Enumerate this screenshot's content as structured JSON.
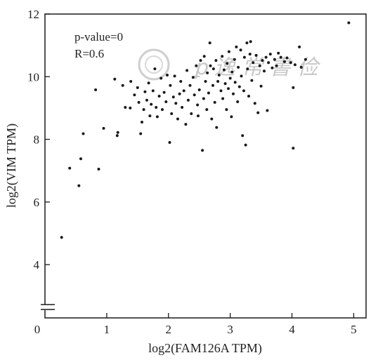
{
  "chart_data": {
    "type": "scatter",
    "xlabel": "log2(FAM126A TPM)",
    "ylabel": "log2(VIM TPM)",
    "xlim": [
      0,
      5.2
    ],
    "ylim": [
      2.3,
      12
    ],
    "x_ticks": [
      "0",
      "1",
      "2",
      "3",
      "4",
      "5"
    ],
    "y_ticks": [
      "4",
      "6",
      "8",
      "10",
      "12"
    ],
    "annotations": {
      "pvalue": "p-value=0",
      "r": "R=0.6"
    },
    "point_color": "#1a1a1a",
    "watermark_color": "#c8c8c8",
    "y_axis_break": true,
    "points": [
      [
        0.27,
        4.87
      ],
      [
        0.4,
        7.08
      ],
      [
        0.55,
        6.52
      ],
      [
        0.58,
        7.38
      ],
      [
        0.62,
        8.18
      ],
      [
        0.82,
        9.58
      ],
      [
        0.87,
        7.05
      ],
      [
        0.95,
        8.35
      ],
      [
        1.13,
        9.92
      ],
      [
        1.17,
        8.12
      ],
      [
        1.18,
        8.22
      ],
      [
        1.26,
        9.72
      ],
      [
        1.3,
        9.02
      ],
      [
        1.38,
        9.0
      ],
      [
        1.39,
        9.85
      ],
      [
        1.45,
        9.42
      ],
      [
        1.5,
        9.65
      ],
      [
        1.52,
        9.18
      ],
      [
        1.55,
        8.18
      ],
      [
        1.57,
        8.55
      ],
      [
        1.6,
        8.95
      ],
      [
        1.62,
        9.52
      ],
      [
        1.65,
        9.25
      ],
      [
        1.68,
        9.8
      ],
      [
        1.7,
        8.75
      ],
      [
        1.72,
        9.12
      ],
      [
        1.75,
        9.55
      ],
      [
        1.78,
        10.25
      ],
      [
        1.8,
        9.02
      ],
      [
        1.82,
        8.72
      ],
      [
        1.85,
        9.38
      ],
      [
        1.88,
        9.95
      ],
      [
        1.9,
        8.95
      ],
      [
        1.93,
        9.5
      ],
      [
        1.96,
        9.2
      ],
      [
        1.98,
        10.05
      ],
      [
        2.02,
        7.9
      ],
      [
        2.03,
        9.72
      ],
      [
        2.05,
        8.82
      ],
      [
        2.08,
        9.35
      ],
      [
        2.1,
        10.02
      ],
      [
        2.12,
        9.15
      ],
      [
        2.15,
        8.65
      ],
      [
        2.18,
        9.45
      ],
      [
        2.2,
        9.85
      ],
      [
        2.22,
        9.02
      ],
      [
        2.25,
        9.55
      ],
      [
        2.28,
        8.48
      ],
      [
        2.3,
        10.2
      ],
      [
        2.32,
        9.25
      ],
      [
        2.35,
        9.72
      ],
      [
        2.37,
        8.82
      ],
      [
        2.4,
        9.98
      ],
      [
        2.42,
        9.42
      ],
      [
        2.45,
        10.35
      ],
      [
        2.47,
        9.1
      ],
      [
        2.48,
        8.75
      ],
      [
        2.5,
        9.58
      ],
      [
        2.52,
        10.52
      ],
      [
        2.55,
        7.65
      ],
      [
        2.57,
        9.3
      ],
      [
        2.58,
        10.65
      ],
      [
        2.6,
        9.85
      ],
      [
        2.62,
        8.95
      ],
      [
        2.63,
        10.12
      ],
      [
        2.65,
        9.48
      ],
      [
        2.67,
        11.08
      ],
      [
        2.68,
        10.35
      ],
      [
        2.7,
        8.65
      ],
      [
        2.72,
        9.72
      ],
      [
        2.73,
        10.25
      ],
      [
        2.75,
        9.18
      ],
      [
        2.77,
        10.52
      ],
      [
        2.78,
        8.38
      ],
      [
        2.8,
        9.85
      ],
      [
        2.82,
        10.05
      ],
      [
        2.85,
        9.55
      ],
      [
        2.87,
        10.65
      ],
      [
        2.88,
        9.3
      ],
      [
        2.9,
        10.22
      ],
      [
        2.92,
        9.78
      ],
      [
        2.94,
        8.95
      ],
      [
        2.95,
        10.42
      ],
      [
        2.97,
        9.62
      ],
      [
        2.98,
        10.8
      ],
      [
        3.0,
        9.95
      ],
      [
        3.02,
        8.72
      ],
      [
        3.03,
        10.15
      ],
      [
        3.05,
        9.45
      ],
      [
        3.07,
        10.55
      ],
      [
        3.08,
        9.82
      ],
      [
        3.1,
        10.95
      ],
      [
        3.12,
        9.2
      ],
      [
        3.13,
        10.3
      ],
      [
        3.15,
        9.68
      ],
      [
        3.17,
        10.85
      ],
      [
        3.18,
        10.02
      ],
      [
        3.2,
        8.12
      ],
      [
        3.22,
        9.55
      ],
      [
        3.23,
        10.62
      ],
      [
        3.25,
        7.82
      ],
      [
        3.27,
        11.08
      ],
      [
        3.28,
        10.25
      ],
      [
        3.3,
        9.38
      ],
      [
        3.32,
        10.72
      ],
      [
        3.33,
        11.12
      ],
      [
        3.35,
        9.88
      ],
      [
        3.37,
        10.45
      ],
      [
        3.4,
        9.15
      ],
      [
        3.42,
        10.68
      ],
      [
        3.45,
        8.85
      ],
      [
        3.48,
        10.35
      ],
      [
        3.5,
        9.7
      ],
      [
        3.52,
        10.52
      ],
      [
        3.55,
        10.18
      ],
      [
        3.58,
        10.62
      ],
      [
        3.6,
        8.92
      ],
      [
        3.62,
        10.45
      ],
      [
        3.65,
        10.72
      ],
      [
        3.68,
        10.28
      ],
      [
        3.72,
        10.55
      ],
      [
        3.75,
        10.35
      ],
      [
        3.78,
        10.75
      ],
      [
        3.82,
        10.62
      ],
      [
        3.88,
        10.48
      ],
      [
        3.92,
        10.6
      ],
      [
        3.98,
        10.45
      ],
      [
        4.02,
        7.72
      ],
      [
        4.02,
        9.65
      ],
      [
        4.05,
        10.38
      ],
      [
        4.12,
        10.95
      ],
      [
        4.15,
        10.3
      ],
      [
        4.22,
        10.55
      ],
      [
        4.92,
        11.72
      ]
    ]
  }
}
